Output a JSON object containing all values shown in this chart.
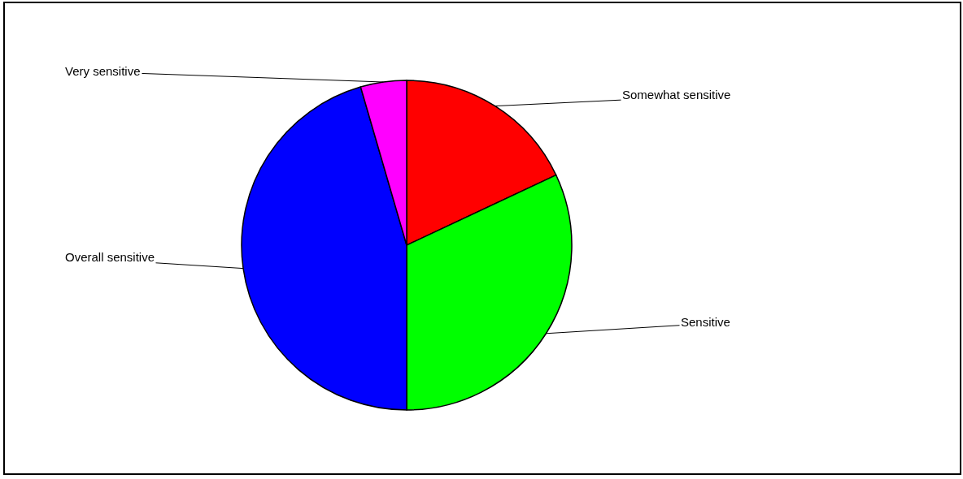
{
  "chart_data": {
    "type": "pie",
    "categories": [
      "Somewhat sensitive",
      "Sensitive",
      "Overall sensitive",
      "Very sensitive"
    ],
    "values": [
      18,
      32,
      45.5,
      4.5
    ],
    "colors": [
      "#ff0000",
      "#00ff00",
      "#0000ff",
      "#ff00ff"
    ]
  }
}
